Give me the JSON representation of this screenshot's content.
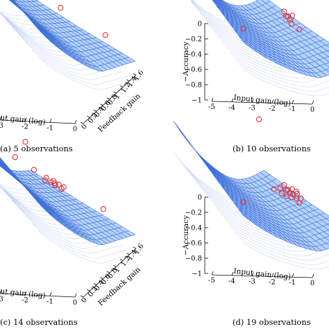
{
  "chart_data": [
    {
      "type": "surface3d",
      "caption": "(a) 5 observations",
      "xlabel": "Input gain (log)",
      "ylabel": "Feedback gain",
      "zlabel": "",
      "x_ticks": [
        "-3",
        "-2",
        "-1",
        "0"
      ],
      "y_ticks": [
        "0",
        "0.2",
        "0.4",
        "0.6",
        "0.8",
        "1",
        "1.2",
        "1.4",
        "1.6"
      ],
      "z_ticks": [],
      "ylim": [
        0,
        1.6
      ],
      "xlim": [
        -5,
        0
      ],
      "zlim": [
        -1,
        0
      ],
      "surface_color": "#3f6fd6",
      "marker_color": "#e0303a",
      "observations": [
        {
          "x": -4.6,
          "y": 1.2,
          "z": 0.0
        },
        {
          "x": -1.3,
          "y": 1.4,
          "z": -0.7
        },
        {
          "x": -0.3,
          "y": 1.6,
          "z": -0.6
        },
        {
          "x": -0.2,
          "y": 0.4,
          "z": -0.85
        },
        {
          "x": -0.5,
          "y": 1.0,
          "z": -0.8
        }
      ]
    },
    {
      "type": "surface3d",
      "caption": "(b) 10 observations",
      "xlabel": "Input gain (log)",
      "ylabel": "",
      "zlabel": "−Accuracy",
      "x_ticks": [
        "-5",
        "-4",
        "-3",
        "-2",
        "-1",
        "0"
      ],
      "y_ticks": [],
      "z_ticks": [
        "0",
        "−0.2",
        "−0.4",
        "−0.6",
        "−0.8",
        "−1"
      ],
      "xlim": [
        -5,
        0
      ],
      "zlim": [
        -1,
        0
      ],
      "surface_color": "#3f6fd6",
      "marker_color": "#e0303a",
      "observations": [
        {
          "x": -4.6,
          "y": 0.2,
          "z": -0.15
        },
        {
          "x": -0.9,
          "y": 1.4,
          "z": -0.1
        },
        {
          "x": -1.0,
          "y": 0.8,
          "z": -0.8
        },
        {
          "x": -0.8,
          "y": 0.9,
          "z": -0.82
        },
        {
          "x": -0.7,
          "y": 1.0,
          "z": -0.84
        },
        {
          "x": -0.6,
          "y": 1.0,
          "z": -0.85
        },
        {
          "x": -0.5,
          "y": 1.1,
          "z": -0.85
        },
        {
          "x": -0.9,
          "y": 0.7,
          "z": -0.83
        },
        {
          "x": -0.4,
          "y": 1.0,
          "z": -0.86
        },
        {
          "x": -0.1,
          "y": 0.2,
          "z": -0.95
        }
      ]
    },
    {
      "type": "surface3d",
      "caption": "(c) 14 observations",
      "xlabel": "Input gain (log)",
      "ylabel": "Feedback gain",
      "zlabel": "",
      "x_ticks": [
        "-3",
        "-2",
        "-1",
        "0"
      ],
      "y_ticks": [
        "0",
        "0.2",
        "0.4",
        "0.6",
        "0.8",
        "1",
        "1.2",
        "1.4",
        "1.6"
      ],
      "z_ticks": [],
      "ylim": [
        0,
        1.6
      ],
      "xlim": [
        -5,
        0
      ],
      "zlim": [
        -1,
        0
      ],
      "surface_color": "#3f6fd6",
      "marker_color": "#e0303a",
      "observations": [
        {
          "x": -4.6,
          "y": 1.2,
          "z": 0.0
        },
        {
          "x": -1.5,
          "y": 1.4,
          "z": -0.7
        },
        {
          "x": -0.3,
          "y": 1.6,
          "z": -0.6
        },
        {
          "x": -0.3,
          "y": 0.4,
          "z": -0.85
        },
        {
          "x": -1.2,
          "y": 1.2,
          "z": -0.75
        },
        {
          "x": -1.0,
          "y": 1.0,
          "z": -0.8
        },
        {
          "x": -0.9,
          "y": 1.1,
          "z": -0.8
        },
        {
          "x": -0.8,
          "y": 1.0,
          "z": -0.82
        },
        {
          "x": -0.7,
          "y": 1.05,
          "z": -0.82
        },
        {
          "x": -0.6,
          "y": 1.0,
          "z": -0.84
        },
        {
          "x": -1.1,
          "y": 0.9,
          "z": -0.78
        },
        {
          "x": -0.5,
          "y": 0.95,
          "z": -0.85
        },
        {
          "x": -0.95,
          "y": 0.85,
          "z": -0.8
        },
        {
          "x": -1.3,
          "y": 1.0,
          "z": -0.77
        }
      ]
    },
    {
      "type": "surface3d",
      "caption": "(d) 19 observations",
      "xlabel": "Input gain (log)",
      "ylabel": "",
      "zlabel": "−Accuracy",
      "x_ticks": [
        "-5",
        "-4",
        "-3",
        "-2",
        "-1",
        "0"
      ],
      "y_ticks": [],
      "z_ticks": [
        "0",
        "−0.2",
        "−0.4",
        "−0.6",
        "−0.8",
        "−1"
      ],
      "xlim": [
        -5,
        0
      ],
      "zlim": [
        -1,
        0
      ],
      "surface_color": "#3f6fd6",
      "marker_color": "#e0303a",
      "observations": [
        {
          "x": -4.6,
          "y": 0.2,
          "z": -0.15
        },
        {
          "x": -0.9,
          "y": 1.4,
          "z": -0.1
        },
        {
          "x": -1.0,
          "y": 0.8,
          "z": -0.8
        },
        {
          "x": -0.8,
          "y": 0.9,
          "z": -0.82
        },
        {
          "x": -0.7,
          "y": 1.0,
          "z": -0.84
        },
        {
          "x": -0.6,
          "y": 1.0,
          "z": -0.85
        },
        {
          "x": -0.5,
          "y": 1.1,
          "z": -0.85
        },
        {
          "x": -0.9,
          "y": 0.7,
          "z": -0.83
        },
        {
          "x": -0.4,
          "y": 1.0,
          "z": -0.86
        },
        {
          "x": -0.1,
          "y": 0.2,
          "z": -0.95
        },
        {
          "x": -1.1,
          "y": 0.85,
          "z": -0.8
        },
        {
          "x": -1.2,
          "y": 0.9,
          "z": -0.78
        },
        {
          "x": -0.85,
          "y": 1.05,
          "z": -0.83
        },
        {
          "x": -0.75,
          "y": 0.8,
          "z": -0.84
        },
        {
          "x": -0.65,
          "y": 0.9,
          "z": -0.85
        },
        {
          "x": -0.55,
          "y": 0.8,
          "z": -0.86
        },
        {
          "x": -1.3,
          "y": 1.0,
          "z": -0.77
        },
        {
          "x": -0.45,
          "y": 0.9,
          "z": -0.86
        },
        {
          "x": -0.35,
          "y": 0.95,
          "z": -0.87
        }
      ]
    }
  ]
}
